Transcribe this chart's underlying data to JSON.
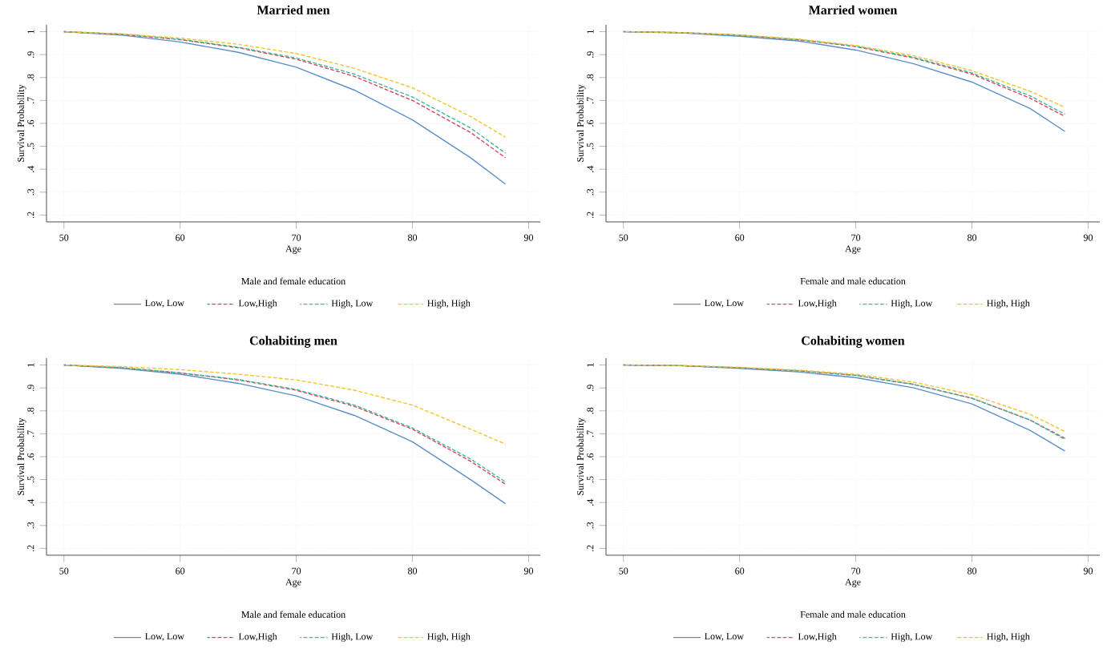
{
  "chart_data": [
    {
      "type": "line",
      "title": "Married men",
      "xlabel": "Age",
      "ylabel": "Survival Probability",
      "legend_title": "Male and female education",
      "x": [
        50,
        55,
        60,
        65,
        70,
        75,
        80,
        85,
        88
      ],
      "xlim": [
        48.5,
        91
      ],
      "xticks": [
        50,
        60,
        70,
        80,
        90
      ],
      "ylim": [
        0.17,
        1.03
      ],
      "yticks": [
        {
          "value": 0.2,
          "label": ".2"
        },
        {
          "value": 0.3,
          "label": ".3"
        },
        {
          "value": 0.4,
          "label": ".4"
        },
        {
          "value": 0.5,
          "label": ".5"
        },
        {
          "value": 0.6,
          "label": ".6"
        },
        {
          "value": 0.7,
          "label": ".7"
        },
        {
          "value": 0.8,
          "label": ".8"
        },
        {
          "value": 0.9,
          "label": ".9"
        },
        1
      ],
      "grid": true,
      "legend": "bottom",
      "series": [
        {
          "name": "Low, Low",
          "color": "#5b8fc7",
          "line_style": "solid",
          "values": [
            1,
            0.985,
            0.955,
            0.91,
            0.845,
            0.745,
            0.615,
            0.45,
            0.335
          ]
        },
        {
          "name": "Low,High",
          "color": "#d9475e",
          "line_style": "dashed",
          "values": [
            1,
            0.988,
            0.965,
            0.93,
            0.88,
            0.805,
            0.7,
            0.56,
            0.45
          ]
        },
        {
          "name": "High, Low",
          "color": "#3cb99a",
          "line_style": "dashed",
          "values": [
            1,
            0.99,
            0.967,
            0.932,
            0.885,
            0.815,
            0.715,
            0.58,
            0.47
          ]
        },
        {
          "name": "High, High",
          "color": "#f4c430",
          "line_style": "dashed",
          "values": [
            1,
            0.99,
            0.972,
            0.945,
            0.905,
            0.84,
            0.755,
            0.63,
            0.54
          ]
        }
      ]
    },
    {
      "type": "line",
      "title": "Married women",
      "xlabel": "Age",
      "ylabel": "Survival Probability",
      "legend_title": "Female and male education",
      "x": [
        50,
        55,
        60,
        65,
        70,
        75,
        80,
        85,
        88
      ],
      "xlim": [
        48.5,
        91
      ],
      "xticks": [
        50,
        60,
        70,
        80,
        90
      ],
      "ylim": [
        0.17,
        1.03
      ],
      "yticks": [
        {
          "value": 0.2,
          "label": ".2"
        },
        {
          "value": 0.3,
          "label": ".3"
        },
        {
          "value": 0.4,
          "label": ".4"
        },
        {
          "value": 0.5,
          "label": ".5"
        },
        {
          "value": 0.6,
          "label": ".6"
        },
        {
          "value": 0.7,
          "label": ".7"
        },
        {
          "value": 0.8,
          "label": ".8"
        },
        {
          "value": 0.9,
          "label": ".9"
        },
        1
      ],
      "grid": true,
      "legend": "bottom",
      "series": [
        {
          "name": "Low, Low",
          "color": "#5b8fc7",
          "line_style": "solid",
          "values": [
            1,
            0.995,
            0.98,
            0.96,
            0.92,
            0.86,
            0.78,
            0.665,
            0.565
          ]
        },
        {
          "name": "Low,High",
          "color": "#d9475e",
          "line_style": "dashed",
          "values": [
            1,
            0.996,
            0.985,
            0.965,
            0.935,
            0.885,
            0.815,
            0.71,
            0.63
          ]
        },
        {
          "name": "High, Low",
          "color": "#3cb99a",
          "line_style": "dashed",
          "values": [
            1,
            0.996,
            0.985,
            0.966,
            0.937,
            0.888,
            0.82,
            0.72,
            0.64
          ]
        },
        {
          "name": "High, High",
          "color": "#f4c430",
          "line_style": "dashed",
          "values": [
            1,
            0.996,
            0.986,
            0.968,
            0.94,
            0.895,
            0.83,
            0.74,
            0.67
          ]
        }
      ]
    },
    {
      "type": "line",
      "title": "Cohabiting men",
      "xlabel": "Age",
      "ylabel": "Survival Probability",
      "legend_title": "Male and female education",
      "x": [
        50,
        55,
        60,
        65,
        70,
        75,
        80,
        85,
        88
      ],
      "xlim": [
        48.5,
        91
      ],
      "xticks": [
        50,
        60,
        70,
        80,
        90
      ],
      "ylim": [
        0.17,
        1.03
      ],
      "yticks": [
        {
          "value": 0.2,
          "label": ".2"
        },
        {
          "value": 0.3,
          "label": ".3"
        },
        {
          "value": 0.4,
          "label": ".4"
        },
        {
          "value": 0.5,
          "label": ".5"
        },
        {
          "value": 0.6,
          "label": ".6"
        },
        {
          "value": 0.7,
          "label": ".7"
        },
        {
          "value": 0.8,
          "label": ".8"
        },
        {
          "value": 0.9,
          "label": ".9"
        },
        1
      ],
      "grid": true,
      "legend": "bottom",
      "series": [
        {
          "name": "Low, Low",
          "color": "#5b8fc7",
          "line_style": "solid",
          "values": [
            1,
            0.985,
            0.96,
            0.92,
            0.865,
            0.78,
            0.665,
            0.5,
            0.395
          ]
        },
        {
          "name": "Low,High",
          "color": "#d9475e",
          "line_style": "dashed",
          "values": [
            1,
            0.988,
            0.965,
            0.935,
            0.89,
            0.82,
            0.72,
            0.58,
            0.48
          ]
        },
        {
          "name": "High, Low",
          "color": "#3cb99a",
          "line_style": "dashed",
          "values": [
            1,
            0.988,
            0.966,
            0.937,
            0.893,
            0.825,
            0.725,
            0.59,
            0.49
          ]
        },
        {
          "name": "High, High",
          "color": "#f4c430",
          "line_style": "dashed",
          "values": [
            1,
            0.993,
            0.98,
            0.96,
            0.935,
            0.89,
            0.825,
            0.72,
            0.655
          ]
        }
      ]
    },
    {
      "type": "line",
      "title": "Cohabiting women",
      "xlabel": "Age",
      "ylabel": "Survival Probability",
      "legend_title": "Female and male education",
      "x": [
        50,
        55,
        60,
        65,
        70,
        75,
        80,
        85,
        88
      ],
      "xlim": [
        48.5,
        91
      ],
      "xticks": [
        50,
        60,
        70,
        80,
        90
      ],
      "ylim": [
        0.17,
        1.03
      ],
      "yticks": [
        {
          "value": 0.2,
          "label": ".2"
        },
        {
          "value": 0.3,
          "label": ".3"
        },
        {
          "value": 0.4,
          "label": ".4"
        },
        {
          "value": 0.5,
          "label": ".5"
        },
        {
          "value": 0.6,
          "label": ".6"
        },
        {
          "value": 0.7,
          "label": ".7"
        },
        {
          "value": 0.8,
          "label": ".8"
        },
        {
          "value": 0.9,
          "label": ".9"
        },
        1
      ],
      "grid": true,
      "legend": "bottom",
      "series": [
        {
          "name": "Low, Low",
          "color": "#5b8fc7",
          "line_style": "solid",
          "values": [
            1,
            0.997,
            0.985,
            0.97,
            0.945,
            0.9,
            0.83,
            0.715,
            0.625
          ]
        },
        {
          "name": "Low,High",
          "color": "#d9475e",
          "line_style": "dashed",
          "values": [
            1,
            0.997,
            0.988,
            0.975,
            0.955,
            0.915,
            0.855,
            0.76,
            0.68
          ]
        },
        {
          "name": "High, Low",
          "color": "#3cb99a",
          "line_style": "dashed",
          "values": [
            1,
            0.997,
            0.988,
            0.975,
            0.955,
            0.915,
            0.855,
            0.76,
            0.675
          ]
        },
        {
          "name": "High, High",
          "color": "#f4c430",
          "line_style": "dashed",
          "values": [
            1,
            0.998,
            0.99,
            0.978,
            0.96,
            0.925,
            0.87,
            0.785,
            0.71
          ]
        }
      ]
    }
  ]
}
